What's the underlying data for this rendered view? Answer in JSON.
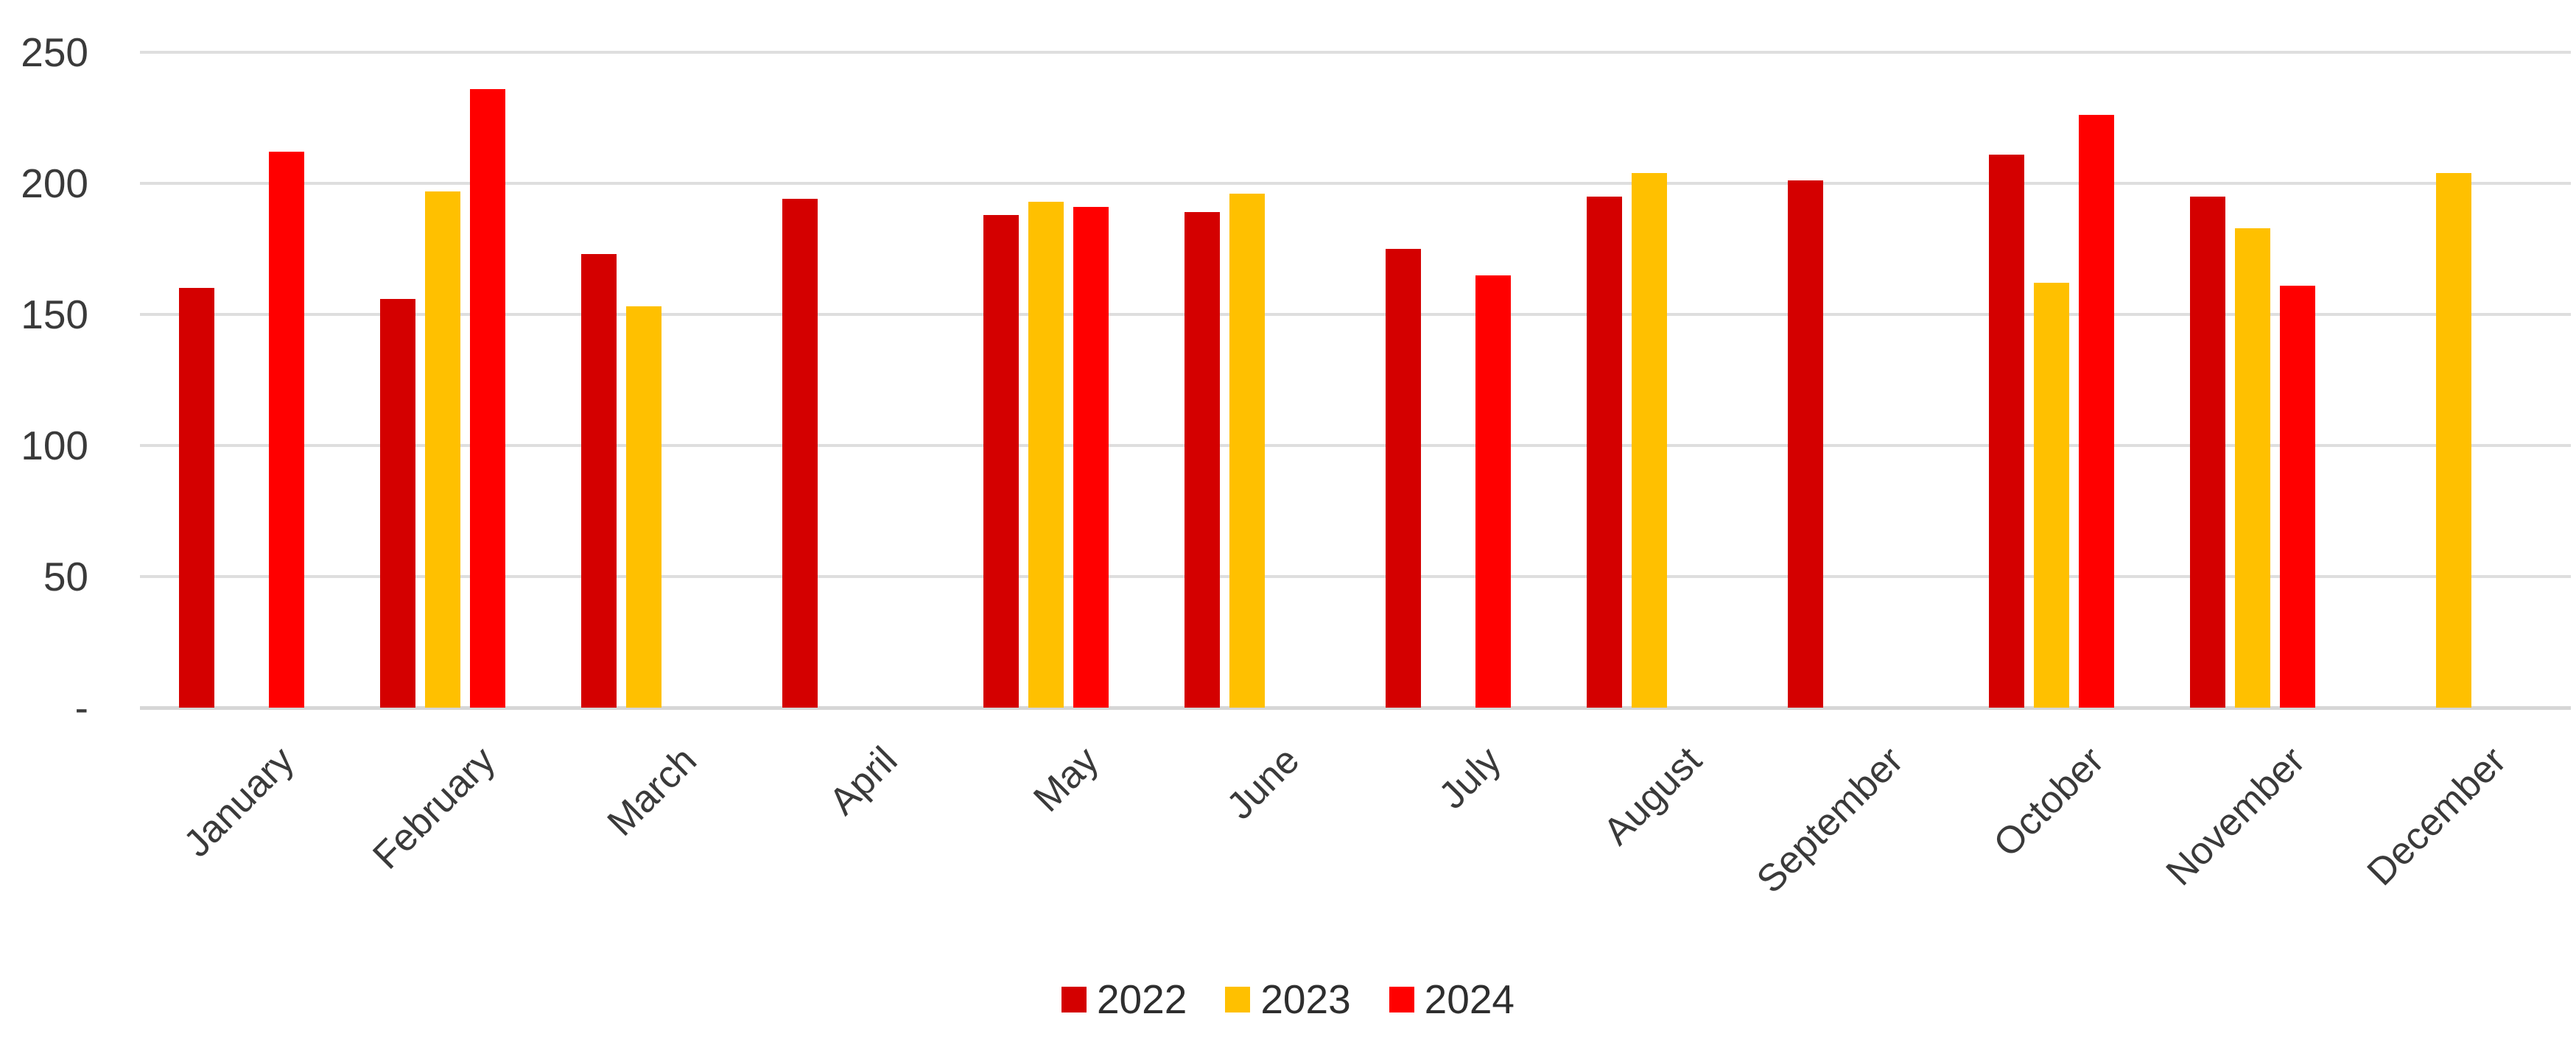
{
  "chart_data": {
    "type": "bar",
    "title": "",
    "xlabel": "",
    "ylabel": "",
    "categories": [
      "January",
      "February",
      "March",
      "April",
      "May",
      "June",
      "July",
      "August",
      "September",
      "October",
      "November",
      "December"
    ],
    "series": [
      {
        "name": "2022",
        "color": "#d40000",
        "values": [
          160,
          156,
          173,
          194,
          188,
          189,
          175,
          195,
          201,
          211,
          195,
          null
        ]
      },
      {
        "name": "2023",
        "color": "#ffc000",
        "values": [
          null,
          197,
          153,
          null,
          193,
          196,
          null,
          204,
          null,
          162,
          183,
          204
        ]
      },
      {
        "name": "2024",
        "color": "#ff0000",
        "values": [
          212,
          236,
          null,
          null,
          191,
          null,
          165,
          null,
          null,
          226,
          161,
          null
        ]
      }
    ],
    "ylim": [
      0,
      250
    ],
    "yticks": [
      {
        "value": 0,
        "label": "-"
      },
      {
        "value": 50,
        "label": "50"
      },
      {
        "value": 100,
        "label": "100"
      },
      {
        "value": 150,
        "label": "150"
      },
      {
        "value": 200,
        "label": "200"
      },
      {
        "value": 250,
        "label": "250"
      }
    ],
    "grid": true,
    "legend_position": "bottom",
    "colors": {
      "gridline": "#dedede",
      "axis_line": "#d6d6d6",
      "tick_text": "#3a3a3a",
      "label_text": "#3a3a3a",
      "legend_text": "#2e2e2e",
      "background": "#ffffff"
    }
  }
}
